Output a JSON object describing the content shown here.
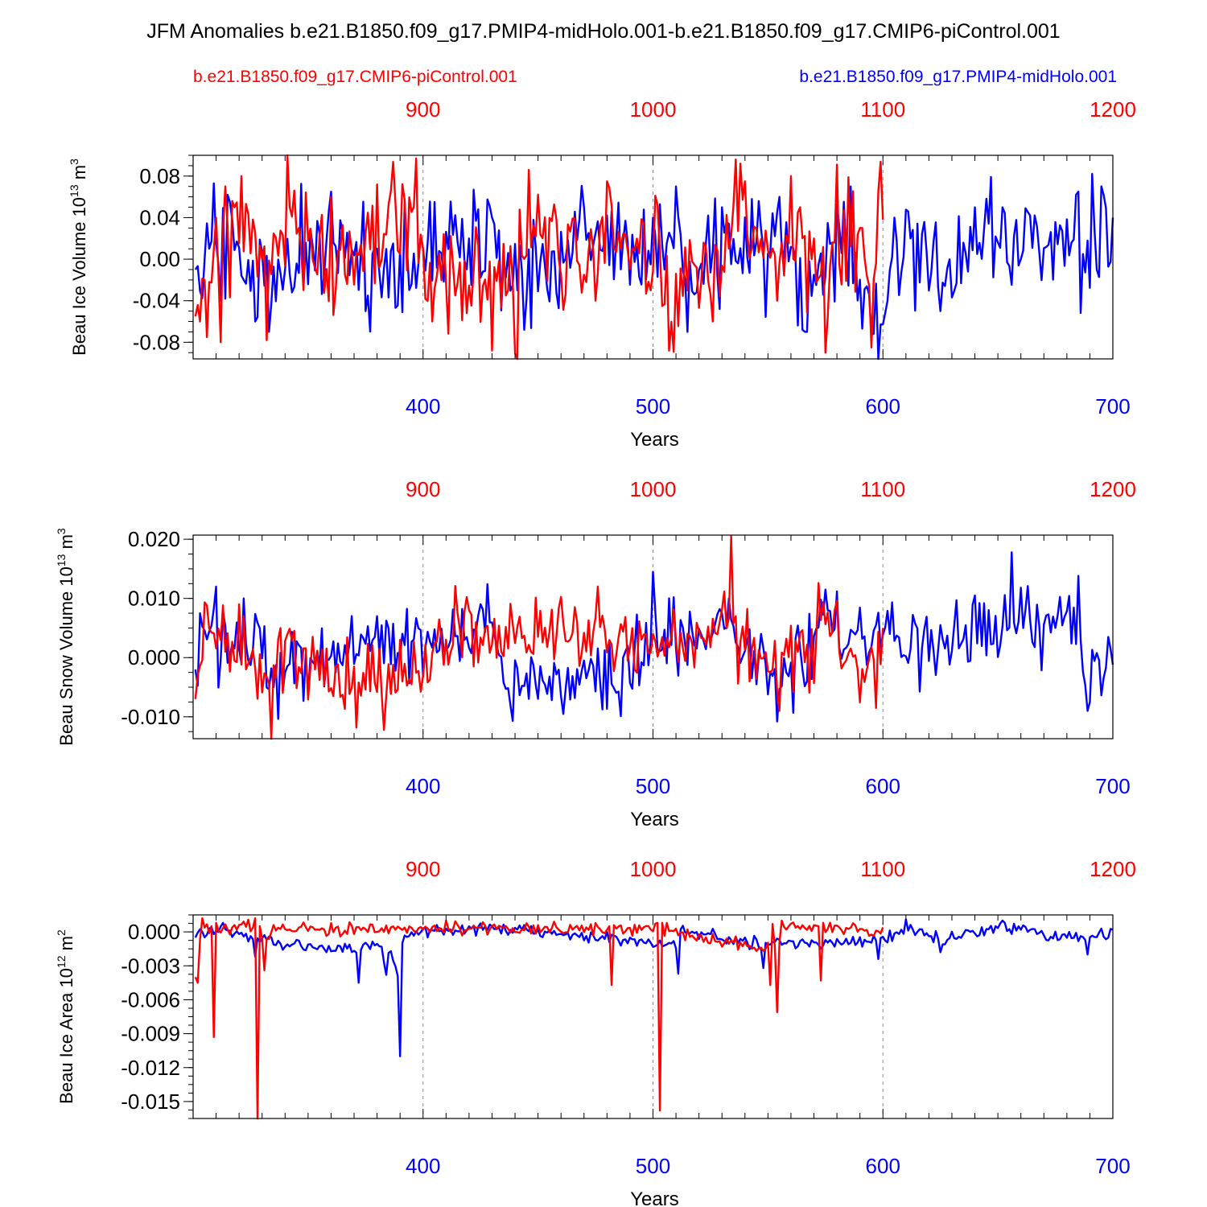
{
  "title": "JFM Anomalies b.e21.B1850.f09_g17.PMIP4-midHolo.001-b.e21.B1850.f09_g17.CMIP6-piControl.001",
  "colors": {
    "control": "#ff0000",
    "midholo": "#0000ff",
    "axis": "#000000",
    "grid": "#888888"
  },
  "chart_data": [
    {
      "type": "line",
      "ylabel": "Beau Ice Volume 10",
      "ylabel_exp": "13",
      "ylabel_unit": " m",
      "ylabel_unit_exp": "3",
      "xlabel": "Years",
      "ylim": [
        -0.096,
        0.1
      ],
      "yticks": [
        -0.08,
        -0.04,
        0.0,
        0.04,
        0.08
      ],
      "ytick_labels": [
        "-0.08",
        "-0.04",
        "0.00",
        "0.04",
        "0.08"
      ],
      "seed": 11,
      "amp": 0.04,
      "bottom_ticks": [
        "400",
        "500",
        "600",
        "700"
      ],
      "top_ticks": [
        "900",
        "1000",
        "1100",
        "1200"
      ],
      "series": [
        {
          "name": "b.e21.B1850.f09_g17.CMIP6-piControl.001",
          "x_range": [
            301,
            600
          ],
          "anchors": [
            [
              301,
              -0.055
            ],
            [
              303,
              -0.06
            ],
            [
              305,
              -0.02
            ],
            [
              306,
              -0.075
            ],
            [
              310,
              0.04
            ],
            [
              312,
              -0.08
            ],
            [
              314,
              0.07
            ],
            [
              318,
              0.05
            ],
            [
              321,
              0.08
            ],
            [
              330,
              0.0
            ],
            [
              332,
              -0.078
            ],
            [
              341,
              0.101
            ],
            [
              346,
              0.03
            ],
            [
              362,
              -0.03
            ],
            [
              380,
              0.072
            ],
            [
              397,
              0.097
            ],
            [
              400,
              0.01
            ],
            [
              404,
              -0.06
            ],
            [
              430,
              -0.088
            ],
            [
              437,
              -0.03
            ],
            [
              441,
              -0.097
            ],
            [
              446,
              0.086
            ],
            [
              475,
              -0.04
            ],
            [
              480,
              0.075
            ],
            [
              504,
              -0.045
            ],
            [
              507,
              -0.088
            ],
            [
              526,
              -0.06
            ],
            [
              536,
              0.096
            ],
            [
              538,
              0.092
            ],
            [
              554,
              -0.04
            ],
            [
              560,
              0.08
            ],
            [
              564,
              0.05
            ],
            [
              570,
              0.02
            ],
            [
              575,
              -0.09
            ],
            [
              580,
              0.091
            ],
            [
              591,
              0.03
            ],
            [
              595,
              -0.085
            ],
            [
              598,
              0.065
            ],
            [
              600,
              0.038
            ]
          ]
        },
        {
          "name": "b.e21.B1850.f09_g17.PMIP4-midHolo.001",
          "x_range": [
            301,
            700
          ],
          "anchors": [
            [
              301,
              -0.01
            ],
            [
              305,
              0.0
            ],
            [
              309,
              0.073
            ],
            [
              312,
              -0.04
            ],
            [
              316,
              0.055
            ],
            [
              322,
              -0.02
            ],
            [
              333,
              -0.07
            ],
            [
              360,
              0.065
            ],
            [
              375,
              -0.05
            ],
            [
              400,
              0.01
            ],
            [
              420,
              0.02
            ],
            [
              430,
              0.04
            ],
            [
              441,
              -0.03
            ],
            [
              444,
              -0.068
            ],
            [
              470,
              0.05
            ],
            [
              500,
              0.04
            ],
            [
              505,
              -0.01
            ],
            [
              510,
              0.07
            ],
            [
              515,
              -0.07
            ],
            [
              530,
              0.05
            ],
            [
              555,
              0.06
            ],
            [
              567,
              -0.07
            ],
            [
              586,
              0.07
            ],
            [
              598,
              -0.096
            ],
            [
              602,
              -0.04
            ],
            [
              605,
              0.04
            ],
            [
              625,
              -0.05
            ],
            [
              640,
              0.05
            ],
            [
              660,
              0.0
            ],
            [
              685,
              0.065
            ],
            [
              700,
              0.04
            ]
          ]
        }
      ]
    },
    {
      "type": "line",
      "ylabel": "Beau Snow Volume 10",
      "ylabel_exp": "13",
      "ylabel_unit": " m",
      "ylabel_unit_exp": "3",
      "xlabel": "Years",
      "ylim": [
        -0.0137,
        0.0207
      ],
      "yticks": [
        -0.01,
        0.0,
        0.01,
        0.02
      ],
      "ytick_labels": [
        "-0.010",
        "0.000",
        "0.010",
        "0.020"
      ],
      "seed": 23,
      "amp": 0.0045,
      "bottom_ticks": [
        "400",
        "500",
        "600",
        "700"
      ],
      "top_ticks": [
        "900",
        "1000",
        "1100",
        "1200"
      ],
      "series": [
        {
          "name": "b.e21.B1850.f09_g17.CMIP6-piControl.001",
          "x_range": [
            301,
            600
          ],
          "anchors": [
            [
              301,
              -0.007
            ],
            [
              306,
              0.0088
            ],
            [
              320,
              0.009
            ],
            [
              334,
              -0.0137
            ],
            [
              338,
              0.005
            ],
            [
              371,
              -0.0118
            ],
            [
              383,
              -0.0122
            ],
            [
              414,
              0.0121
            ],
            [
              420,
              0.008
            ],
            [
              476,
              0.012
            ],
            [
              500,
              0.004
            ],
            [
              534,
              0.0205
            ],
            [
              536,
              0.007
            ],
            [
              555,
              -0.009
            ],
            [
              572,
              0.0126
            ],
            [
              597,
              -0.0085
            ],
            [
              600,
              0.005
            ]
          ]
        },
        {
          "name": "b.e21.B1850.f09_g17.PMIP4-midHolo.001",
          "x_range": [
            301,
            700
          ],
          "anchors": [
            [
              301,
              -0.002
            ],
            [
              303,
              0.0075
            ],
            [
              310,
              0.012
            ],
            [
              322,
              0.01
            ],
            [
              335,
              -0.005
            ],
            [
              380,
              0.007
            ],
            [
              428,
              0.0124
            ],
            [
              439,
              -0.0107
            ],
            [
              486,
              -0.0099
            ],
            [
              500,
              0.0145
            ],
            [
              533,
              0.01
            ],
            [
              554,
              -0.0108
            ],
            [
              575,
              0.0115
            ],
            [
              625,
              0.0055
            ],
            [
              640,
              0.0105
            ],
            [
              656,
              0.0178
            ],
            [
              685,
              0.0138
            ],
            [
              689,
              -0.009
            ],
            [
              700,
              -0.0012
            ]
          ]
        }
      ]
    },
    {
      "type": "line",
      "ylabel": "Beau Ice Area 10",
      "ylabel_exp": "12",
      "ylabel_unit": " m",
      "ylabel_unit_exp": "2",
      "xlabel": "Years",
      "ylim": [
        -0.0165,
        0.0015
      ],
      "yticks": [
        -0.015,
        -0.012,
        -0.009,
        -0.006,
        -0.003,
        0.0
      ],
      "ytick_labels": [
        "-0.015",
        "-0.012",
        "-0.009",
        "-0.006",
        "-0.003",
        "0.000"
      ],
      "seed": 37,
      "amp": 0.0004,
      "bottom_ticks": [
        "400",
        "500",
        "600",
        "700"
      ],
      "top_ticks": [
        "900",
        "1000",
        "1100",
        "1200"
      ],
      "series": [
        {
          "name": "b.e21.B1850.f09_g17.CMIP6-piControl.001",
          "x_range": [
            301,
            600
          ],
          "anchors": [
            [
              301,
              -0.004
            ],
            [
              302,
              -0.0045
            ],
            [
              304,
              0.0012
            ],
            [
              308,
              0.0005
            ],
            [
              309,
              -0.0093
            ],
            [
              310,
              0.0008
            ],
            [
              327,
              0.0012
            ],
            [
              328,
              -0.0165
            ],
            [
              329,
              0.0005
            ],
            [
              331,
              -0.0034
            ],
            [
              335,
              0.0006
            ],
            [
              410,
              0.001
            ],
            [
              481,
              0.0005
            ],
            [
              482,
              -0.0047
            ],
            [
              483,
              0.0006
            ],
            [
              502,
              0.0008
            ],
            [
              503,
              -0.0158
            ],
            [
              504,
              0.0008
            ],
            [
              551,
              -0.0047
            ],
            [
              552,
              0.0007
            ],
            [
              554,
              -0.0071
            ],
            [
              556,
              0.001
            ],
            [
              572,
              0.0005
            ],
            [
              573,
              -0.0043
            ],
            [
              574,
              0.0008
            ],
            [
              600,
              0.0004
            ]
          ]
        },
        {
          "name": "b.e21.B1850.f09_g17.PMIP4-midHolo.001",
          "x_range": [
            301,
            700
          ],
          "anchors": [
            [
              301,
              -0.0005
            ],
            [
              313,
              0.0008
            ],
            [
              327,
              -0.0022
            ],
            [
              372,
              -0.0045
            ],
            [
              383,
              -0.0027
            ],
            [
              384,
              -0.0038
            ],
            [
              390,
              -0.011
            ],
            [
              391,
              -0.001
            ],
            [
              400,
              0.0003
            ],
            [
              444,
              0.0006
            ],
            [
              511,
              -0.0037
            ],
            [
              512,
              0.0002
            ],
            [
              548,
              -0.0032
            ],
            [
              598,
              -0.0024
            ],
            [
              610,
              0.0011
            ],
            [
              625,
              -0.0018
            ],
            [
              652,
              0.001
            ],
            [
              689,
              -0.002
            ],
            [
              700,
              0.0002
            ]
          ]
        }
      ]
    }
  ]
}
